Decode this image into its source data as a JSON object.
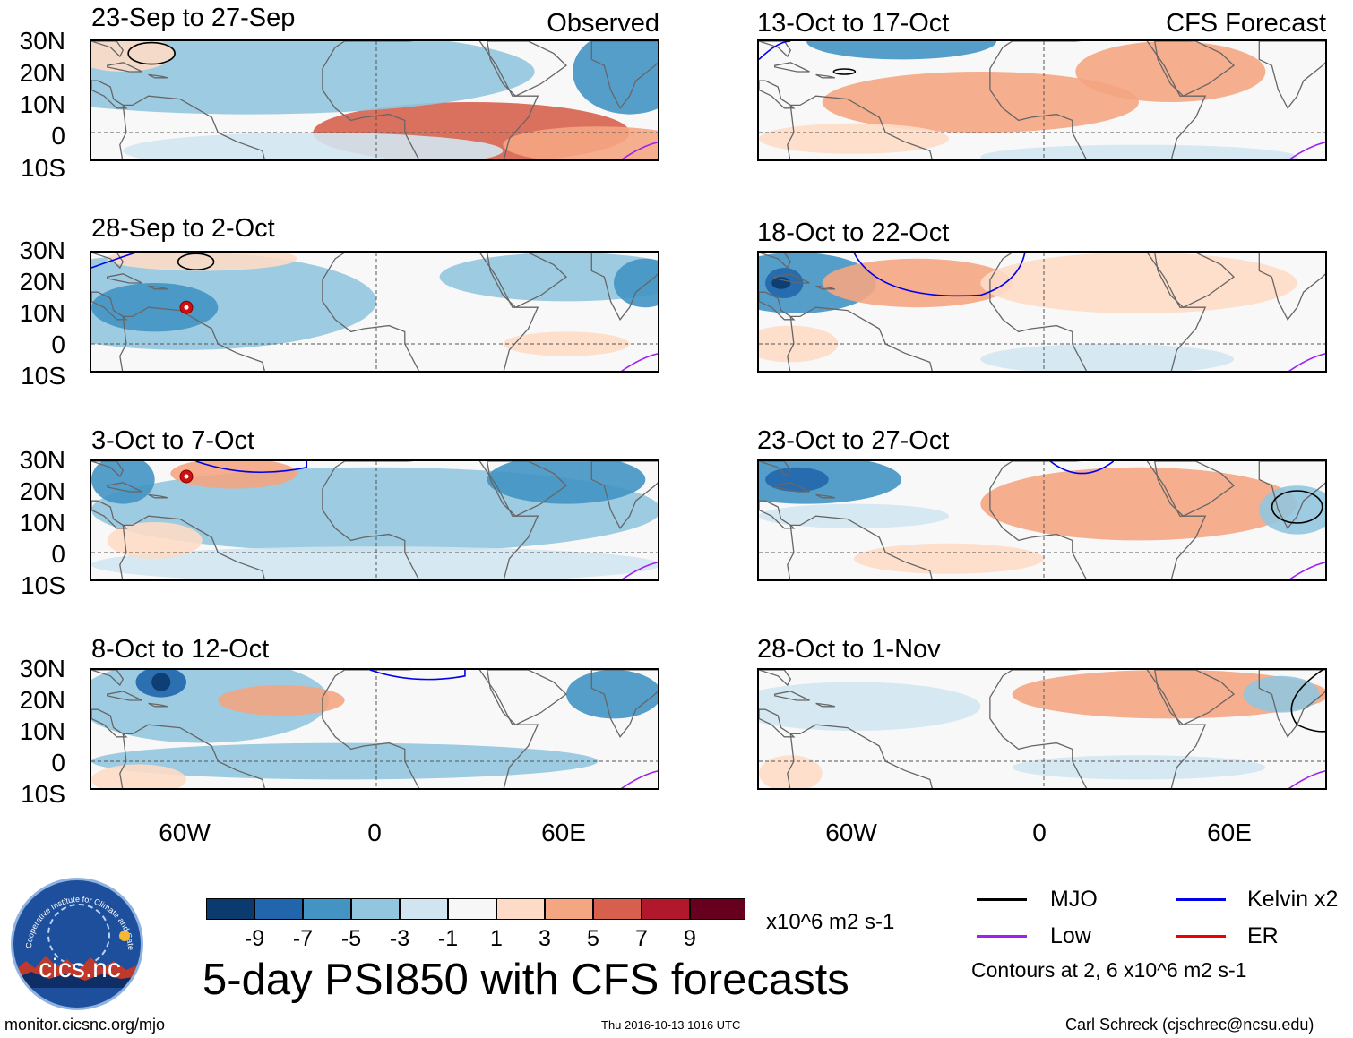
{
  "panels": [
    {
      "title": "23-Sep to 27-Sep",
      "tag": "Observed"
    },
    {
      "title": "28-Sep to 2-Oct",
      "tag": ""
    },
    {
      "title": "3-Oct to 7-Oct",
      "tag": ""
    },
    {
      "title": "8-Oct to 12-Oct",
      "tag": ""
    },
    {
      "title": "13-Oct to 17-Oct",
      "tag": "CFS Forecast"
    },
    {
      "title": "18-Oct to 22-Oct",
      "tag": ""
    },
    {
      "title": "23-Oct to 27-Oct",
      "tag": ""
    },
    {
      "title": "28-Oct to 1-Nov",
      "tag": ""
    }
  ],
  "axes": {
    "lat_labels": [
      "30N",
      "20N",
      "10N",
      "0",
      "10S"
    ],
    "lon_labels": [
      "60W",
      "0",
      "60E"
    ]
  },
  "colorbar": {
    "colors": [
      "#0b3a6e",
      "#2166ac",
      "#4393c3",
      "#92c5de",
      "#d1e5f0",
      "#f7f7f7",
      "#fddbc7",
      "#f4a582",
      "#d6604d",
      "#b2182b",
      "#67001f"
    ],
    "labels": [
      "-9",
      "-7",
      "-5",
      "-3",
      "-1",
      "1",
      "3",
      "5",
      "7",
      "9"
    ],
    "units": "x10^6 m2 s-1"
  },
  "title": "5-day PSI850 with CFS forecasts",
  "legend": {
    "items": [
      {
        "label": "MJO",
        "color": "#000000"
      },
      {
        "label": "Kelvin x2",
        "color": "#0000ee"
      },
      {
        "label": "Low",
        "color": "#a020f0"
      },
      {
        "label": "ER",
        "color": "#ee0000"
      }
    ],
    "note": "Contours at 2, 6 x10^6 m2 s-1"
  },
  "logo": {
    "name": "cics.nc",
    "arc_text": "Cooperative Institute for Climate and Satellites"
  },
  "footer": {
    "left": "monitor.cicsnc.org/mjo",
    "center": "Thu 2016-10-13 1016 UTC",
    "right": "Carl Schreck (cjschrec@ncsu.edu)"
  },
  "colors": {
    "land": "#666666",
    "equator": "#555555"
  }
}
